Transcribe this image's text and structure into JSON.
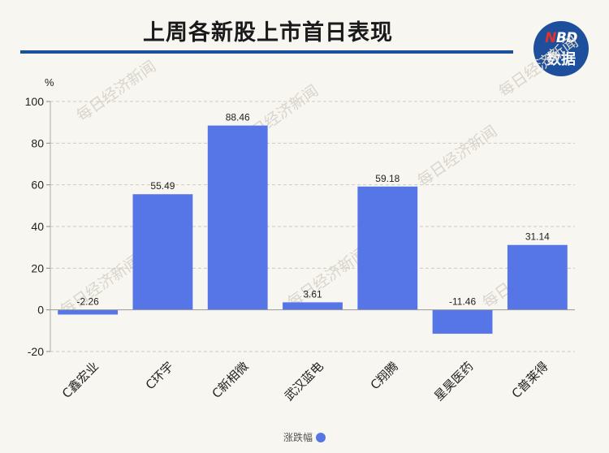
{
  "header": {
    "title": "上周各新股上市首日表现",
    "logo_top": "NBD",
    "logo_bottom": "数据"
  },
  "watermark": "每日经济新闻",
  "colors": {
    "bar": "#5675e7",
    "title_rule": "#1e4f9c",
    "logo_bg": "#1e4f9c",
    "logo_accent": "#e2322b"
  },
  "chart_data": {
    "type": "bar",
    "title": "上周各新股上市首日表现",
    "ylabel": "%",
    "xlabel": "",
    "ylim": [
      -20,
      100
    ],
    "yticks": [
      -20,
      0,
      20,
      40,
      60,
      80,
      100
    ],
    "categories": [
      "C鑫宏业",
      "C环宇",
      "C新相微",
      "武汉蓝电",
      "C翔腾",
      "星昊医药",
      "C普莱得"
    ],
    "series": [
      {
        "name": "涨跌幅",
        "values": [
          -2.26,
          55.49,
          88.46,
          3.61,
          59.18,
          -11.46,
          31.14
        ]
      }
    ],
    "data_labels": [
      "-2.26",
      "55.49",
      "88.46",
      "3.61",
      "59.18",
      "-11.46",
      "31.14"
    ],
    "grid": true,
    "legend": "bottom"
  }
}
